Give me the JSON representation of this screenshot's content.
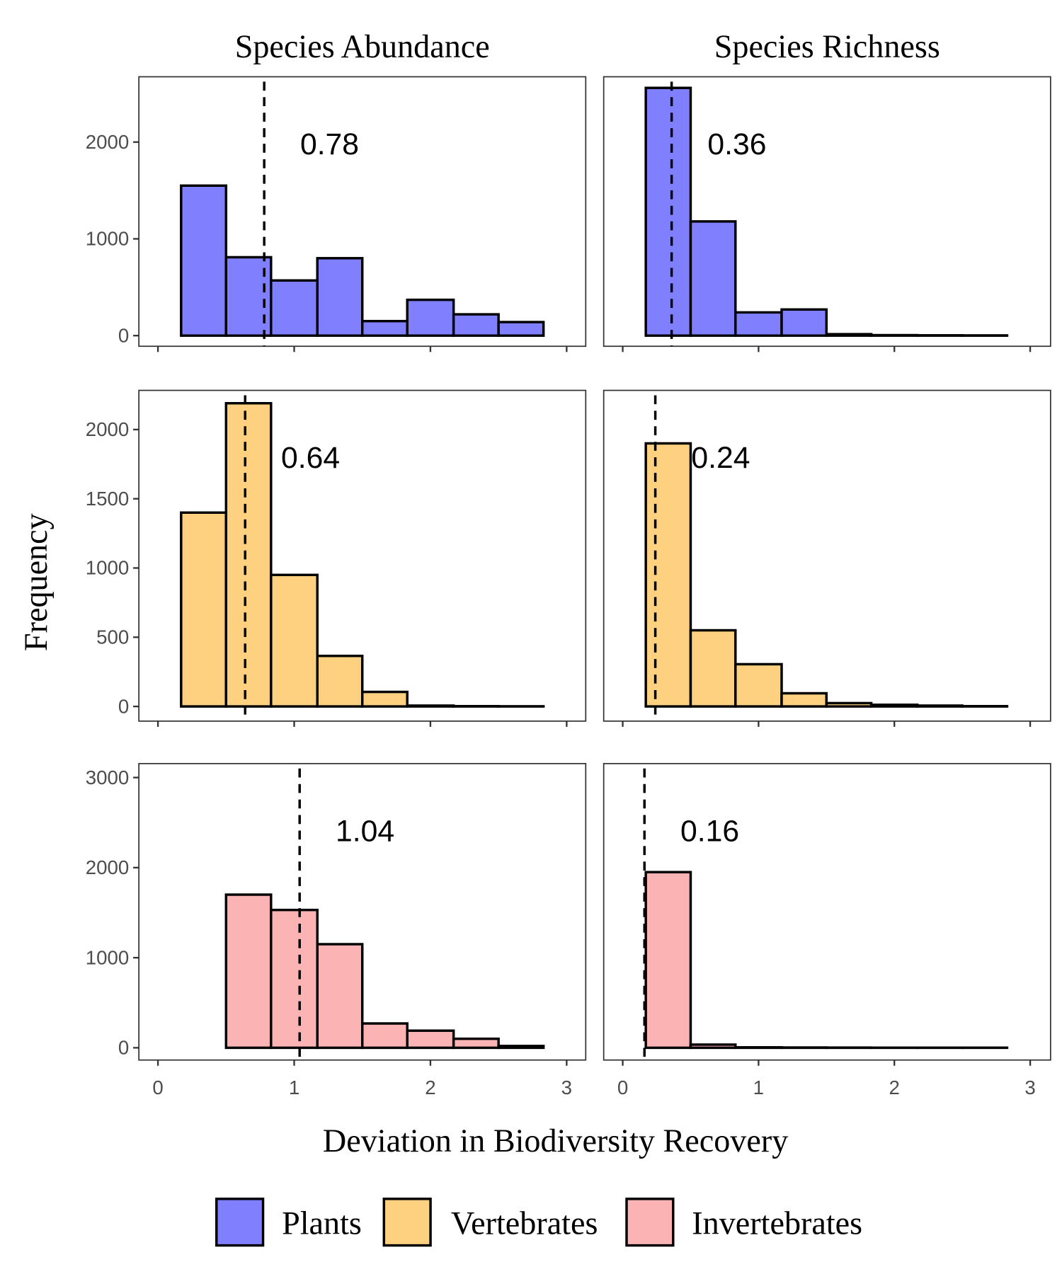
{
  "figure": {
    "ylabel": "Frequency",
    "xlabel": "Deviation in Biodiversity Recovery"
  },
  "chart_data": [
    {
      "type": "histogram",
      "title": "Species Abundance",
      "bins": [
        0.17,
        0.5,
        0.83,
        1.17,
        1.5,
        1.83,
        2.17,
        2.5,
        2.83
      ],
      "series": [
        {
          "name": "Plants",
          "color": "#8080ff",
          "values": [
            1550,
            810,
            570,
            800,
            150,
            370,
            220,
            140
          ]
        }
      ],
      "vline": 0.78,
      "xlim": [
        -0.14,
        3.14
      ],
      "xticks": [
        0,
        1,
        2,
        3
      ],
      "ylim": [
        -110,
        2675
      ],
      "yticks": [
        0,
        1000,
        2000
      ]
    },
    {
      "type": "histogram",
      "title": "Species Richness",
      "bins": [
        0.17,
        0.5,
        0.83,
        1.17,
        1.5,
        1.83,
        2.17,
        2.5,
        2.83
      ],
      "series": [
        {
          "color": "#8080ff",
          "values": [
            2560,
            1180,
            240,
            270,
            15,
            5,
            3,
            2
          ]
        }
      ],
      "vline": 0.36,
      "xlim": [
        -0.14,
        3.15
      ],
      "xticks": [
        0,
        1,
        2,
        3
      ],
      "ylim": [
        -110,
        2675
      ],
      "yticks": [
        0,
        1000,
        2000
      ]
    },
    {
      "type": "histogram",
      "bins": [
        0.17,
        0.5,
        0.83,
        1.17,
        1.5,
        1.83,
        2.17,
        2.5,
        2.83
      ],
      "series": [
        {
          "name": "Vertebrates",
          "color": "#fdd17f",
          "values": [
            1400,
            2190,
            950,
            365,
            105,
            6,
            2,
            1
          ]
        }
      ],
      "vline": 0.64,
      "xlim": [
        -0.14,
        3.14
      ],
      "xticks": [
        0,
        1,
        2,
        3
      ],
      "ylim": [
        -106,
        2283
      ],
      "yticks": [
        0,
        500,
        1000,
        1500,
        2000
      ]
    },
    {
      "type": "histogram",
      "bins": [
        0.17,
        0.5,
        0.83,
        1.17,
        1.5,
        1.83,
        2.17,
        2.5,
        2.83
      ],
      "series": [
        {
          "color": "#fdd17f",
          "values": [
            1900,
            550,
            305,
            95,
            24,
            12,
            6,
            2
          ]
        }
      ],
      "vline": 0.24,
      "xlim": [
        -0.14,
        3.15
      ],
      "xticks": [
        0,
        1,
        2,
        3
      ],
      "ylim": [
        -106,
        2283
      ],
      "yticks": [
        0,
        500,
        1000,
        1500,
        2000
      ]
    },
    {
      "type": "histogram",
      "bins": [
        0.17,
        0.5,
        0.83,
        1.17,
        1.5,
        1.83,
        2.17,
        2.5,
        2.83
      ],
      "series": [
        {
          "name": "Invertebrates",
          "color": "#fbb3b3",
          "values": [
            0,
            1700,
            1530,
            1150,
            270,
            190,
            100,
            20
          ]
        }
      ],
      "vline": 1.04,
      "xlim": [
        -0.14,
        3.14
      ],
      "xticks": [
        0,
        1,
        2,
        3
      ],
      "ylim": [
        -136,
        3155
      ],
      "yticks": [
        0,
        1000,
        2000,
        3000
      ]
    },
    {
      "type": "histogram",
      "bins": [
        0.17,
        0.5,
        0.83,
        1.17,
        1.5,
        1.83,
        2.17,
        2.5,
        2.83
      ],
      "series": [
        {
          "color": "#fbb3b3",
          "values": [
            1950,
            35,
            5,
            3,
            2,
            1,
            1,
            1
          ]
        }
      ],
      "vline": 0.16,
      "xlim": [
        -0.14,
        3.15
      ],
      "xticks": [
        0,
        1,
        2,
        3
      ],
      "ylim": [
        -136,
        3155
      ],
      "yticks": [
        0,
        1000,
        2000,
        3000
      ]
    }
  ]
}
